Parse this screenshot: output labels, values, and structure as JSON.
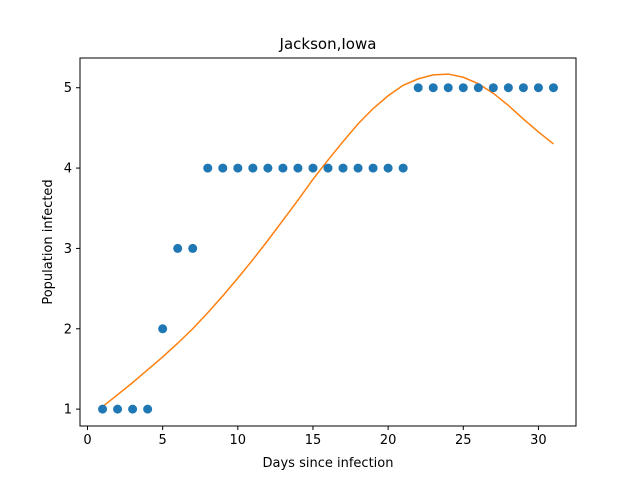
{
  "chart_data": {
    "type": "scatter",
    "title": "Jackson,Iowa",
    "xlabel": "Days since infection",
    "ylabel": "Population infected",
    "xlim": [
      -0.5,
      32.5
    ],
    "ylim": [
      0.79,
      5.37
    ],
    "xticks": [
      0,
      5,
      10,
      15,
      20,
      25,
      30
    ],
    "yticks": [
      1,
      2,
      3,
      4,
      5
    ],
    "grid": false,
    "series": [
      {
        "kind": "scatter",
        "color": "#1f77b4",
        "x": [
          1,
          2,
          3,
          4,
          5,
          6,
          7,
          8,
          9,
          10,
          11,
          12,
          13,
          14,
          15,
          16,
          17,
          18,
          19,
          20,
          21,
          22,
          23,
          24,
          25,
          26,
          27,
          28,
          29,
          30,
          31
        ],
        "y": [
          1,
          1,
          1,
          1,
          2,
          3,
          3,
          4,
          4,
          4,
          4,
          4,
          4,
          4,
          4,
          4,
          4,
          4,
          4,
          4,
          4,
          5,
          5,
          5,
          5,
          5,
          5,
          5,
          5,
          5,
          5
        ]
      },
      {
        "kind": "line",
        "color": "#ff7f0e",
        "x": [
          1,
          2,
          3,
          4,
          5,
          6,
          7,
          8,
          9,
          10,
          11,
          12,
          13,
          14,
          15,
          16,
          17,
          18,
          19,
          20,
          21,
          22,
          23,
          24,
          25,
          26,
          27,
          28,
          29,
          30,
          31
        ],
        "y": [
          1.03,
          1.18,
          1.33,
          1.49,
          1.65,
          1.82,
          2.0,
          2.2,
          2.41,
          2.63,
          2.86,
          3.1,
          3.35,
          3.6,
          3.86,
          4.1,
          4.33,
          4.55,
          4.74,
          4.9,
          5.03,
          5.11,
          5.16,
          5.17,
          5.13,
          5.05,
          4.93,
          4.78,
          4.61,
          4.45,
          4.3
        ]
      }
    ]
  }
}
